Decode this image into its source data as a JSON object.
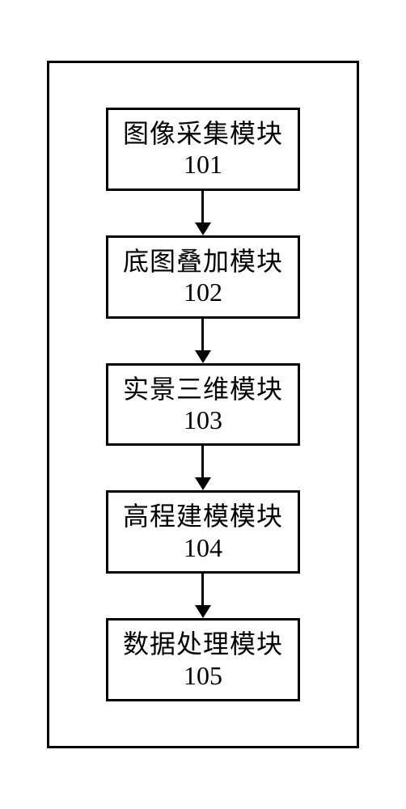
{
  "diagram": {
    "type": "flowchart",
    "direction": "vertical",
    "background_color": "#ffffff",
    "border_color": "#000000",
    "border_width": 3,
    "node_border_width": 3,
    "arrow_color": "#000000",
    "title_fontsize": 32,
    "number_fontsize": 32,
    "nodes": [
      {
        "title": "图像采集模块",
        "number": "101"
      },
      {
        "title": "底图叠加模块",
        "number": "102"
      },
      {
        "title": "实景三维模块",
        "number": "103"
      },
      {
        "title": "高程建模模块",
        "number": "104"
      },
      {
        "title": "数据处理模块",
        "number": "105"
      }
    ],
    "edges": [
      {
        "from": 0,
        "to": 1
      },
      {
        "from": 1,
        "to": 2
      },
      {
        "from": 2,
        "to": 3
      },
      {
        "from": 3,
        "to": 4
      }
    ]
  }
}
